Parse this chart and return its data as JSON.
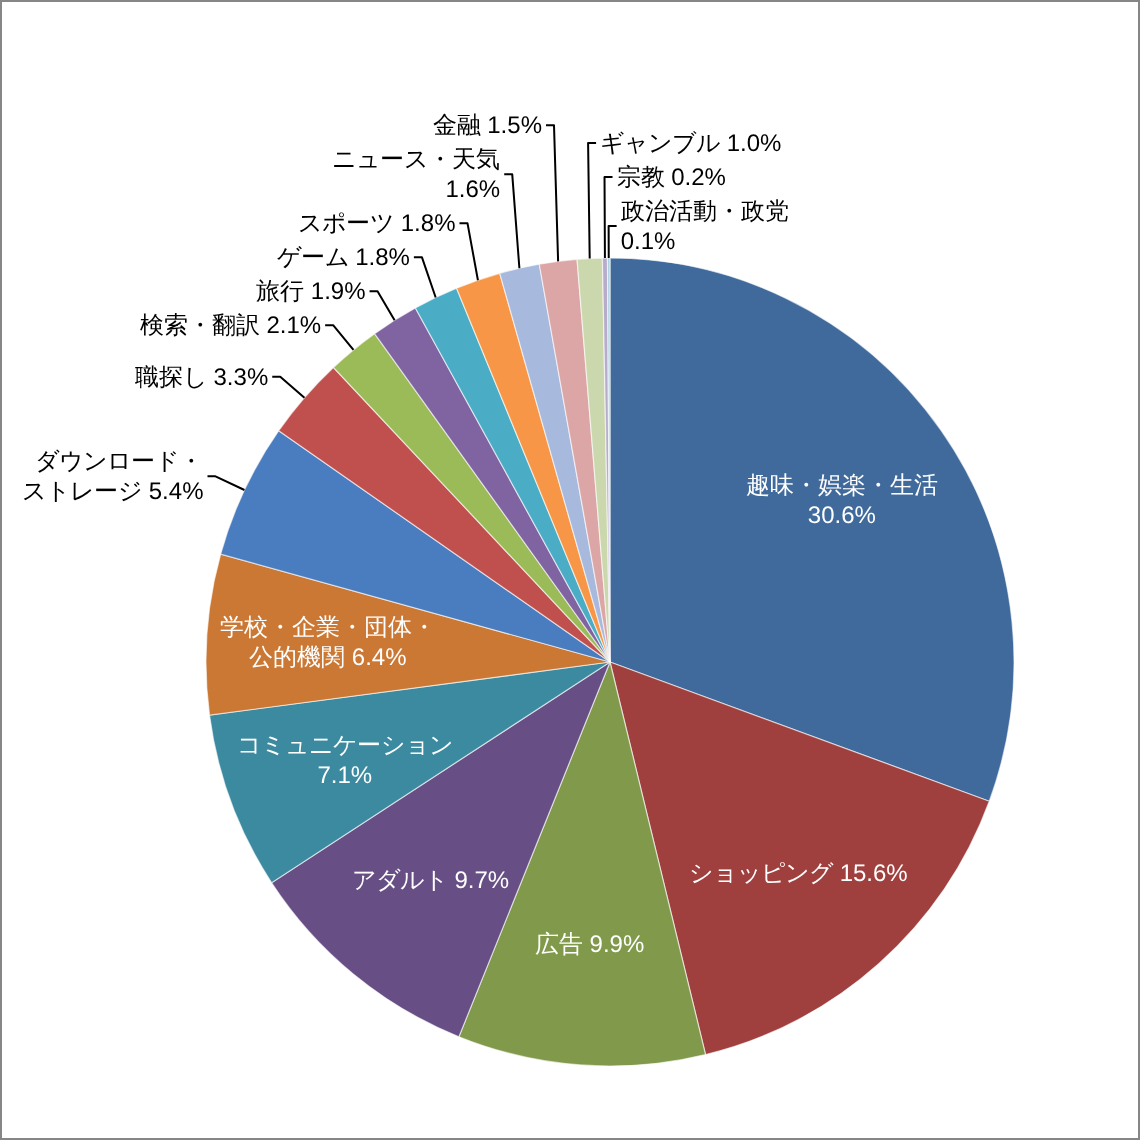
{
  "chart_data": {
    "type": "pie",
    "categories": [
      "趣味・娯楽・生活",
      "ショッピング",
      "広告",
      "アダルト",
      "コミュニケーション",
      "学校・企業・団体・公的機関",
      "ダウンロード・ストレージ",
      "職探し",
      "検索・翻訳",
      "旅行",
      "ゲーム",
      "スポーツ",
      "ニュース・天気",
      "金融",
      "ギャンブル",
      "宗教",
      "政治活動・政党"
    ],
    "values": [
      30.6,
      15.6,
      9.9,
      9.7,
      7.1,
      6.4,
      5.4,
      3.3,
      2.1,
      1.9,
      1.8,
      1.8,
      1.6,
      1.5,
      1.0,
      0.2,
      0.1
    ],
    "value_labels": [
      "30.6%",
      "15.6%",
      "9.9%",
      "9.7%",
      "7.1%",
      "6.4%",
      "5.4%",
      "3.3%",
      "2.1%",
      "1.9%",
      "1.8%",
      "1.8%",
      "1.6%",
      "1.5%",
      "1.0%",
      "0.2%",
      "0.1%"
    ],
    "colors": [
      "#3f6a9b",
      "#9f403e",
      "#80994a",
      "#674f86",
      "#3b8aa0",
      "#cb7834",
      "#4a7dbf",
      "#c0504d",
      "#9bbb59",
      "#8064a2",
      "#4bacc6",
      "#f79646",
      "#a7b9dc",
      "#dba6a5",
      "#cbd8ad",
      "#b8accb",
      "#a9d0de"
    ]
  }
}
